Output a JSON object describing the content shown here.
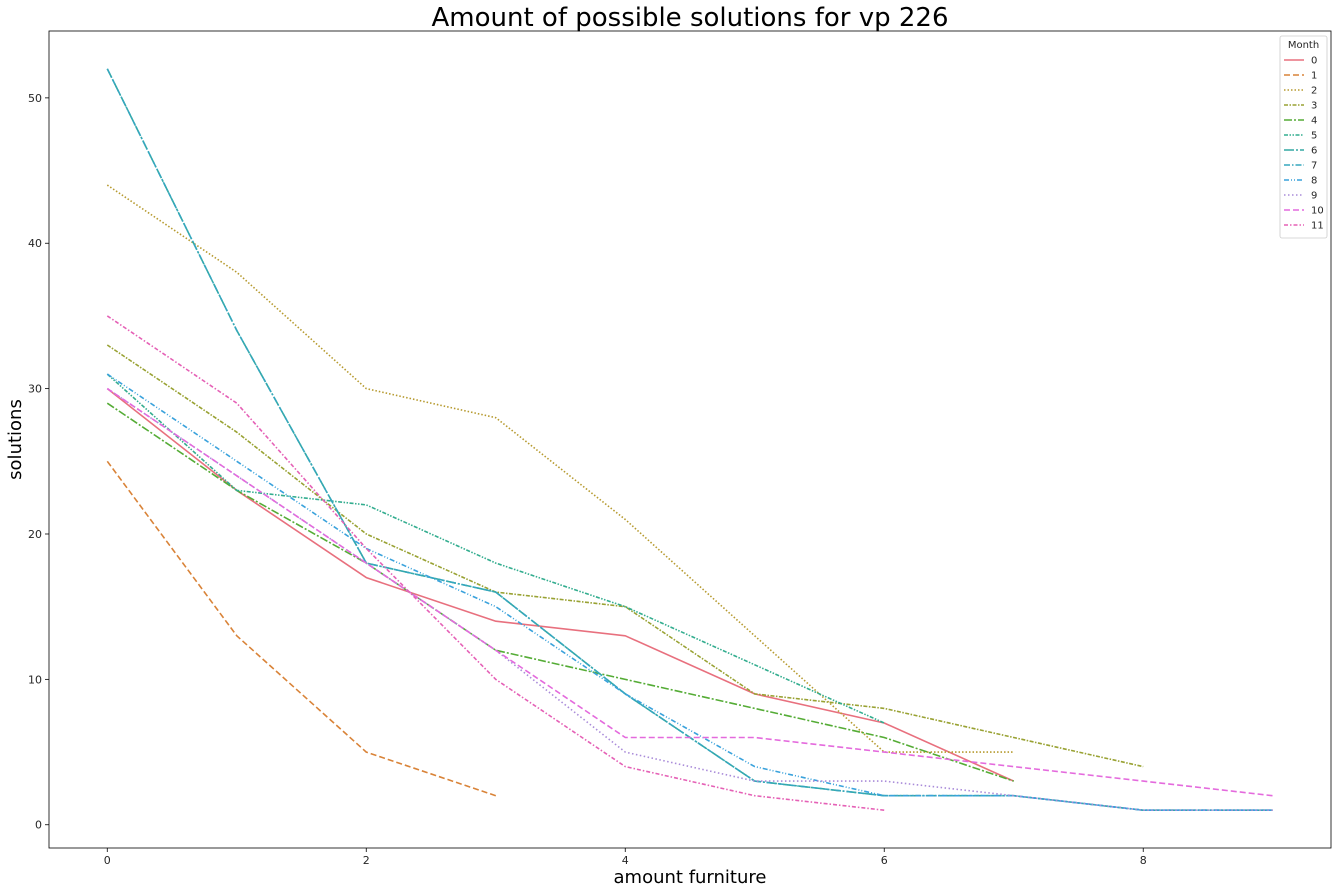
{
  "chart_data": {
    "type": "line",
    "title": "Amount of possible solutions for vp 226",
    "xlabel": "amount furniture",
    "ylabel": "solutions",
    "xlim": [
      -0.45,
      9.45
    ],
    "ylim": [
      -1.6,
      54.6
    ],
    "xticks": [
      0,
      2,
      4,
      6,
      8
    ],
    "yticks": [
      0,
      10,
      20,
      30,
      40,
      50
    ],
    "grid": false,
    "legend": {
      "title": "Month",
      "position": "top-right"
    },
    "series": [
      {
        "name": "0",
        "color": "#e8707e",
        "dash": "",
        "x": [
          0,
          1,
          2,
          3,
          4,
          5,
          6,
          7
        ],
        "y": [
          30,
          23,
          17,
          14,
          13,
          9,
          7,
          3
        ]
      },
      {
        "name": "1",
        "color": "#d98338",
        "dash": "6 3",
        "x": [
          0,
          1,
          2,
          3
        ],
        "y": [
          25,
          13,
          5,
          2
        ]
      },
      {
        "name": "2",
        "color": "#b69a2f",
        "dash": "1.5 2",
        "x": [
          0,
          1,
          2,
          3,
          4,
          5,
          6,
          7
        ],
        "y": [
          44,
          38,
          30,
          28,
          21,
          13,
          5,
          5
        ]
      },
      {
        "name": "3",
        "color": "#99a233",
        "dash": "4 1.5 1.5 1.5",
        "x": [
          0,
          1,
          2,
          3,
          4,
          5,
          6,
          7,
          8
        ],
        "y": [
          33,
          27,
          20,
          16,
          15,
          9,
          8,
          6,
          4
        ]
      },
      {
        "name": "4",
        "color": "#55ac36",
        "dash": "8 2 2 2",
        "x": [
          0,
          1,
          2,
          3,
          4,
          5,
          6,
          7
        ],
        "y": [
          29,
          23,
          18,
          12,
          10,
          8,
          6,
          3
        ]
      },
      {
        "name": "5",
        "color": "#33ad8f",
        "dash": "4 1.5 1.5 1.5 1.5 1.5",
        "x": [
          0,
          1,
          2,
          3,
          4,
          5,
          6
        ],
        "y": [
          31,
          23,
          22,
          18,
          15,
          11,
          7
        ]
      },
      {
        "name": "6",
        "color": "#33a9a3",
        "dash": "10 2 2 2",
        "x": [
          0,
          1,
          2,
          3,
          4,
          5,
          6,
          7,
          8,
          9
        ],
        "y": [
          52,
          34,
          18,
          16,
          9,
          3,
          2,
          2,
          1,
          1
        ]
      },
      {
        "name": "7",
        "color": "#36a7be",
        "dash": "6 2 1.5 2",
        "x": [
          0,
          1,
          2,
          3,
          4,
          5,
          6,
          7,
          8,
          9
        ],
        "y": [
          52,
          34,
          18,
          16,
          9,
          3,
          2,
          2,
          1,
          1
        ]
      },
      {
        "name": "8",
        "color": "#3aa2dc",
        "dash": "5 2 1 2 1 2",
        "x": [
          0,
          1,
          2,
          3,
          4,
          5,
          6,
          7,
          8,
          9
        ],
        "y": [
          31,
          25,
          19,
          15,
          9,
          4,
          2,
          2,
          1,
          1
        ]
      },
      {
        "name": "9",
        "color": "#a98bd9",
        "dash": "1.5 2.5",
        "x": [
          0,
          1,
          2,
          3,
          4,
          5,
          6,
          7,
          8,
          9
        ],
        "y": [
          30,
          24,
          18,
          12,
          5,
          3,
          3,
          2,
          1,
          1
        ]
      },
      {
        "name": "10",
        "color": "#e46add",
        "dash": "6 3",
        "x": [
          0,
          1,
          2,
          3,
          4,
          5,
          6,
          7,
          8,
          9
        ],
        "y": [
          30,
          24,
          18,
          12,
          6,
          6,
          5,
          4,
          3,
          2
        ]
      },
      {
        "name": "11",
        "color": "#e561b6",
        "dash": "4 2 1.5 2",
        "x": [
          0,
          1,
          2,
          3,
          4,
          5,
          6
        ],
        "y": [
          35,
          29,
          19,
          10,
          4,
          2,
          1
        ]
      }
    ]
  }
}
